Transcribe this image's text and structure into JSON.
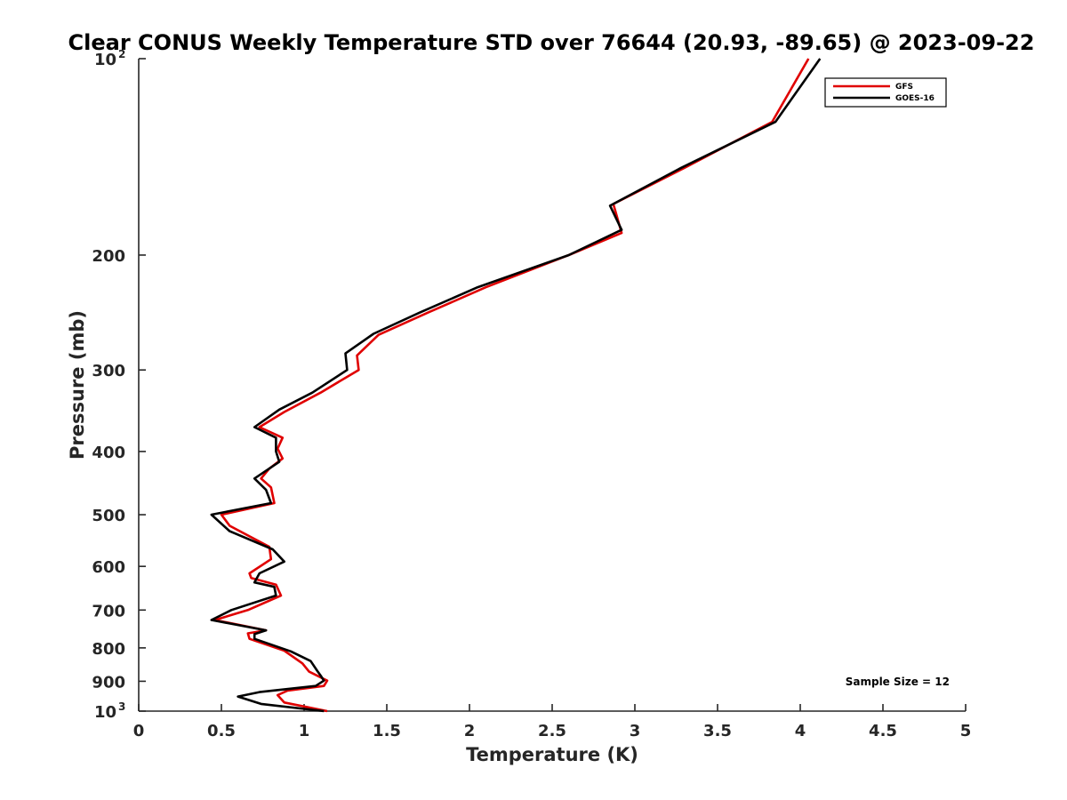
{
  "chart_data": {
    "type": "line",
    "title": "Clear CONUS Weekly Temperature STD over 76644 (20.93, -89.65) @ 2023-09-22",
    "xlabel": "Temperature (K)",
    "ylabel": "Pressure (mb)",
    "xlim": [
      0,
      5
    ],
    "ylim": [
      100,
      1000
    ],
    "yscale": "log",
    "y_reversed": true,
    "grid": false,
    "legend_position": "top-right",
    "x_ticks": [
      0,
      0.5,
      1,
      1.5,
      2,
      2.5,
      3,
      3.5,
      4,
      4.5,
      5
    ],
    "x_tick_labels": [
      "0",
      "0.5",
      "1",
      "1.5",
      "2",
      "2.5",
      "3",
      "3.5",
      "4",
      "4.5",
      "5"
    ],
    "y_ticks": [
      {
        "value": 100,
        "base": "10",
        "exp": "2"
      },
      {
        "value": 200,
        "label": "200"
      },
      {
        "value": 300,
        "label": "300"
      },
      {
        "value": 400,
        "label": "400"
      },
      {
        "value": 500,
        "label": "500"
      },
      {
        "value": 600,
        "label": "600"
      },
      {
        "value": 700,
        "label": "700"
      },
      {
        "value": 800,
        "label": "800"
      },
      {
        "value": 900,
        "label": "900"
      },
      {
        "value": 1000,
        "base": "10",
        "exp": "3"
      }
    ],
    "annotation": "Sample Size = 12",
    "series": [
      {
        "name": "GFS",
        "color": "#e00000",
        "points": [
          [
            4.05,
            100
          ],
          [
            3.83,
            125
          ],
          [
            3.3,
            147
          ],
          [
            2.87,
            167
          ],
          [
            2.92,
            185
          ],
          [
            2.6,
            200
          ],
          [
            2.1,
            224
          ],
          [
            1.75,
            245
          ],
          [
            1.45,
            265
          ],
          [
            1.32,
            285
          ],
          [
            1.33,
            300
          ],
          [
            1.1,
            325
          ],
          [
            0.88,
            348
          ],
          [
            0.73,
            367
          ],
          [
            0.87,
            381
          ],
          [
            0.84,
            396
          ],
          [
            0.87,
            410
          ],
          [
            0.79,
            425
          ],
          [
            0.74,
            440
          ],
          [
            0.8,
            454
          ],
          [
            0.82,
            480
          ],
          [
            0.5,
            500
          ],
          [
            0.55,
            520
          ],
          [
            0.79,
            560
          ],
          [
            0.8,
            585
          ],
          [
            0.67,
            615
          ],
          [
            0.68,
            625
          ],
          [
            0.83,
            640
          ],
          [
            0.86,
            665
          ],
          [
            0.66,
            700
          ],
          [
            0.46,
            725
          ],
          [
            0.77,
            752
          ],
          [
            0.66,
            760
          ],
          [
            0.67,
            775
          ],
          [
            0.88,
            808
          ],
          [
            0.99,
            845
          ],
          [
            1.03,
            870
          ],
          [
            1.14,
            898
          ],
          [
            1.12,
            915
          ],
          [
            0.9,
            930
          ],
          [
            0.84,
            945
          ],
          [
            0.88,
            970
          ],
          [
            1.14,
            1000
          ]
        ]
      },
      {
        "name": "GOES-16",
        "color": "#000000",
        "points": [
          [
            4.12,
            100
          ],
          [
            3.85,
            125
          ],
          [
            3.28,
            147
          ],
          [
            2.85,
            168
          ],
          [
            2.92,
            183
          ],
          [
            2.6,
            200
          ],
          [
            2.05,
            224
          ],
          [
            1.7,
            245
          ],
          [
            1.42,
            264
          ],
          [
            1.25,
            283
          ],
          [
            1.26,
            300
          ],
          [
            1.05,
            325
          ],
          [
            0.85,
            345
          ],
          [
            0.7,
            367
          ],
          [
            0.83,
            381
          ],
          [
            0.83,
            400
          ],
          [
            0.85,
            415
          ],
          [
            0.7,
            440
          ],
          [
            0.77,
            458
          ],
          [
            0.8,
            480
          ],
          [
            0.44,
            500
          ],
          [
            0.55,
            530
          ],
          [
            0.81,
            565
          ],
          [
            0.88,
            590
          ],
          [
            0.73,
            615
          ],
          [
            0.7,
            635
          ],
          [
            0.82,
            645
          ],
          [
            0.83,
            665
          ],
          [
            0.56,
            700
          ],
          [
            0.44,
            725
          ],
          [
            0.77,
            752
          ],
          [
            0.7,
            762
          ],
          [
            0.7,
            775
          ],
          [
            0.92,
            810
          ],
          [
            1.04,
            838
          ],
          [
            1.08,
            868
          ],
          [
            1.1,
            882
          ],
          [
            1.12,
            898
          ],
          [
            1.07,
            915
          ],
          [
            0.73,
            935
          ],
          [
            0.6,
            950
          ],
          [
            0.74,
            975
          ],
          [
            1.12,
            1000
          ]
        ]
      }
    ]
  }
}
